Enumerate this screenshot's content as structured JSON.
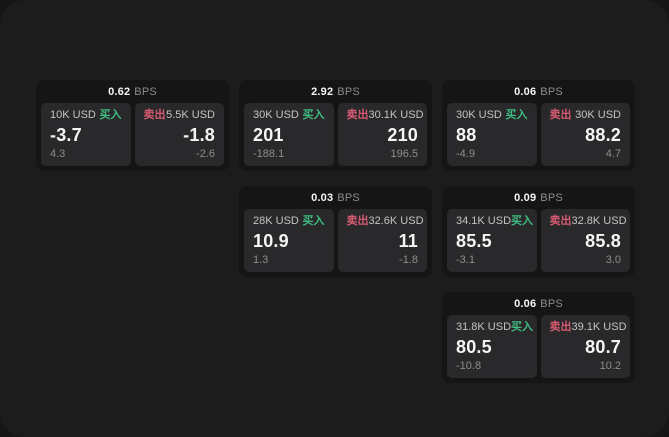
{
  "colors": {
    "page_bg": "#161616",
    "window_bg": "#1c1c1d",
    "card_bg": "#151516",
    "panel_bg": "#29292b",
    "buy_green": "#3fbd80",
    "sell_red": "#d65a70",
    "text_primary": "#f5f5f5",
    "text_secondary": "#c4c4c4",
    "text_muted": "#8d8d8d"
  },
  "labels": {
    "buy": "买入",
    "sell": "卖出",
    "bps_unit": "BPS"
  },
  "cards": [
    {
      "row": 1,
      "col": 1,
      "bps": "0.62",
      "buy": {
        "amount": "10K USD",
        "price": "-3.7",
        "delta": "4.3"
      },
      "sell": {
        "amount": "5.5K USD",
        "price": "-1.8",
        "delta": "-2.6"
      }
    },
    {
      "row": 1,
      "col": 2,
      "bps": "2.92",
      "buy": {
        "amount": "30K USD",
        "price": "201",
        "delta": "-188.1"
      },
      "sell": {
        "amount": "30.1K USD",
        "price": "210",
        "delta": "196.5"
      }
    },
    {
      "row": 1,
      "col": 3,
      "bps": "0.06",
      "buy": {
        "amount": "30K USD",
        "price": "88",
        "delta": "-4.9"
      },
      "sell": {
        "amount": "30K USD",
        "price": "88.2",
        "delta": "4.7"
      }
    },
    {
      "row": 2,
      "col": 2,
      "bps": "0.03",
      "buy": {
        "amount": "28K USD",
        "price": "10.9",
        "delta": "1.3"
      },
      "sell": {
        "amount": "32.6K USD",
        "price": "11",
        "delta": "-1.8"
      }
    },
    {
      "row": 2,
      "col": 3,
      "bps": "0.09",
      "buy": {
        "amount": "34.1K USD",
        "price": "85.5",
        "delta": "-3.1"
      },
      "sell": {
        "amount": "32.8K USD",
        "price": "85.8",
        "delta": "3.0"
      }
    },
    {
      "row": 3,
      "col": 3,
      "bps": "0.06",
      "buy": {
        "amount": "31.8K USD",
        "price": "80.5",
        "delta": "-10.8"
      },
      "sell": {
        "amount": "39.1K USD",
        "price": "80.7",
        "delta": "10.2"
      }
    }
  ]
}
